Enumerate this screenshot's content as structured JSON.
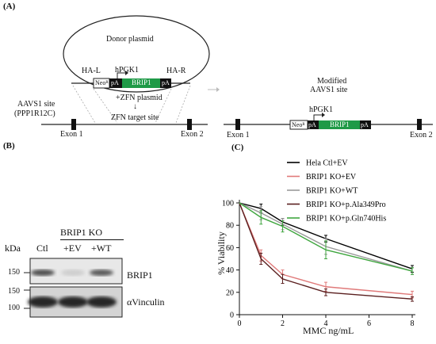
{
  "panels": {
    "a_label": "(A)",
    "b_label": "(B)",
    "c_label": "(C)"
  },
  "diagram": {
    "donor_plasmid": "Donor plasmid",
    "ha_l": "HA-L",
    "ha_r": "HA-R",
    "hpgk1_left": "hPGK1",
    "hpgk1_right": "hPGK1",
    "neo_left": "Neoᴿ",
    "pa_left_1": "pA",
    "brip1_left": "BRIP1",
    "pa_left_2": "pA",
    "zfn_plasmid": "+ZFN plasmid",
    "arrow_down": "↓",
    "aavs1_site_l1": "AAVS1 site",
    "aavs1_site_l2": "(PPP1R12C)",
    "zfn_target": "ZFN target site",
    "exon1_left": "Exon 1",
    "exon2_left": "Exon 2",
    "modified_l1": "Modified",
    "modified_l2": "AAVS1 site",
    "neo_right": "Neoᴿ",
    "pa_right_1": "pA",
    "brip1_right": "BRIP1",
    "pa_right_2": "pA",
    "exon1_right": "Exon 1",
    "exon2_right": "Exon 2",
    "colors": {
      "brip1_green": "#1f9a47",
      "line": "#222222",
      "arrow_grey": "#bbbbbb"
    }
  },
  "blot": {
    "group_label": "BRIP1 KO",
    "lanes": [
      "Ctl",
      "+EV",
      "+WT"
    ],
    "kda": "kDa",
    "marker_150_top": "150",
    "marker_150_bottom": "150",
    "marker_100": "100",
    "band_brip1": "BRIP1",
    "band_vinculin": "αVinculin",
    "brip1_intensity": [
      0.75,
      0.12,
      0.7
    ],
    "vinculin_intensity": [
      1.0,
      1.0,
      1.0
    ]
  },
  "chart_data": {
    "type": "line",
    "xlabel": "MMC ng/mL",
    "ylabel": "% Viability",
    "xlim": [
      0,
      8
    ],
    "ylim": [
      0,
      100
    ],
    "xticks": [
      0,
      2,
      4,
      6,
      8
    ],
    "yticks": [
      0,
      20,
      40,
      60,
      80,
      100
    ],
    "legend_position": "top-right",
    "x": [
      0,
      1,
      2,
      4,
      8
    ],
    "series": [
      {
        "name": "Hela Ctl+EV",
        "color": "#000000",
        "values": [
          100,
          95,
          83,
          68,
          41
        ],
        "err": [
          0,
          4,
          3,
          3,
          3
        ]
      },
      {
        "name": "BRIP1 KO+EV",
        "color": "#e07a7a",
        "values": [
          100,
          53,
          36,
          25,
          18
        ],
        "err": [
          0,
          5,
          4,
          4,
          3
        ]
      },
      {
        "name": "BRIP1 KO+WT",
        "color": "#999999",
        "values": [
          100,
          91,
          81,
          61,
          39
        ],
        "err": [
          0,
          6,
          5,
          7,
          3
        ]
      },
      {
        "name": "BRIP1 KO+p.Ala349Pro",
        "color": "#5a1f1f",
        "values": [
          100,
          50,
          32,
          20,
          14
        ],
        "err": [
          0,
          5,
          4,
          3,
          2
        ]
      },
      {
        "name": "BRIP1 KO+p.Gln740His",
        "color": "#3fa63f",
        "values": [
          100,
          87,
          79,
          58,
          39
        ],
        "err": [
          0,
          6,
          5,
          8,
          3
        ]
      }
    ]
  }
}
